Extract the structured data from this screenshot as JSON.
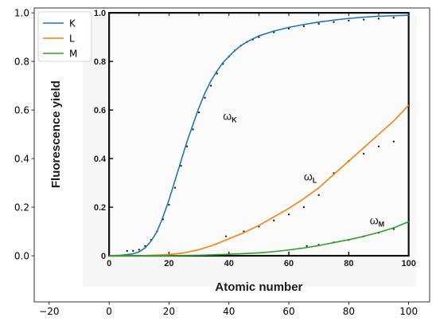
{
  "chart_data": {
    "type": "line",
    "title": "",
    "xlim": [
      -25,
      107
    ],
    "ylim": [
      -0.19,
      1.02
    ],
    "xticks": [
      -20,
      0,
      20,
      40,
      60,
      80,
      100
    ],
    "yticks": [
      0.0,
      0.2,
      0.4,
      0.6,
      0.8,
      1.0
    ],
    "xtick_labels": [
      "−20",
      "0",
      "20",
      "40",
      "60",
      "80",
      "100"
    ],
    "ytick_labels": [
      "0.0",
      "0.2",
      "0.4",
      "0.6",
      "0.8",
      "1.0"
    ],
    "grid": false,
    "legend": "top-left",
    "series": [
      {
        "name": "K",
        "color": "#1f77b4",
        "x": [
          0,
          4,
          8,
          10,
          12,
          14,
          16,
          18,
          20,
          22,
          24,
          26,
          28,
          30,
          32,
          34,
          36,
          38,
          40,
          42,
          44,
          46,
          48,
          50,
          55,
          60,
          65,
          70,
          75,
          80,
          85,
          90,
          95,
          100
        ],
        "y": [
          0.0,
          0.002,
          0.008,
          0.016,
          0.032,
          0.06,
          0.1,
          0.16,
          0.23,
          0.31,
          0.39,
          0.47,
          0.54,
          0.61,
          0.67,
          0.72,
          0.76,
          0.795,
          0.82,
          0.845,
          0.865,
          0.88,
          0.893,
          0.905,
          0.925,
          0.94,
          0.952,
          0.962,
          0.97,
          0.977,
          0.982,
          0.986,
          0.988,
          0.99
        ]
      },
      {
        "name": "L",
        "color": "#ff7f0e",
        "x": [
          0,
          10,
          20,
          25,
          30,
          35,
          40,
          45,
          50,
          55,
          60,
          65,
          70,
          75,
          80,
          85,
          90,
          95,
          100
        ],
        "y": [
          0.0,
          0.0,
          0.005,
          0.012,
          0.025,
          0.045,
          0.07,
          0.095,
          0.125,
          0.16,
          0.195,
          0.235,
          0.28,
          0.335,
          0.39,
          0.445,
          0.5,
          0.555,
          0.62
        ]
      },
      {
        "name": "M",
        "color": "#2ca02c",
        "x": [
          0,
          10,
          20,
          30,
          40,
          50,
          55,
          60,
          65,
          70,
          75,
          80,
          85,
          90,
          95,
          100
        ],
        "y": [
          0.0,
          0.0,
          0.0,
          0.002,
          0.006,
          0.012,
          0.017,
          0.024,
          0.032,
          0.042,
          0.054,
          0.066,
          0.08,
          0.096,
          0.115,
          0.14
        ]
      }
    ],
    "background_scan": {
      "ylabel": "Fluorescence yield",
      "xlabel": "Atomic number",
      "xtick_labels": [
        "0",
        "20",
        "40",
        "60",
        "80",
        "100"
      ],
      "ytick_labels": [
        "0",
        "0.2",
        "0.4",
        "0.6",
        "0.8",
        "1.0"
      ],
      "curve_labels": [
        "ωK",
        "ωL",
        "ωM"
      ],
      "dotted_series": [
        {
          "label": "ωK",
          "x": [
            6,
            8,
            10,
            12,
            14,
            16,
            18,
            20,
            22,
            24,
            26,
            28,
            30,
            32,
            34,
            36,
            38,
            40,
            42,
            44,
            46,
            48,
            50,
            55,
            60,
            65,
            70,
            75,
            80,
            85,
            90,
            95
          ],
          "y": [
            0.02,
            0.02,
            0.025,
            0.04,
            0.065,
            0.1,
            0.15,
            0.21,
            0.28,
            0.37,
            0.45,
            0.52,
            0.59,
            0.65,
            0.7,
            0.75,
            0.79,
            0.82,
            0.845,
            0.865,
            0.88,
            0.89,
            0.9,
            0.92,
            0.935,
            0.945,
            0.955,
            0.962,
            0.968,
            0.972,
            0.976,
            0.98
          ]
        },
        {
          "label": "ωL",
          "x": [
            39,
            45,
            50,
            55,
            60,
            65,
            70,
            75,
            80,
            85,
            90,
            95
          ],
          "y": [
            0.08,
            0.1,
            0.12,
            0.145,
            0.17,
            0.2,
            0.25,
            0.34,
            0.39,
            0.42,
            0.45,
            0.47
          ]
        },
        {
          "label": "ωM",
          "x": [
            66,
            70,
            75,
            80,
            85,
            90,
            95
          ],
          "y": [
            0.04,
            0.045,
            0.055,
            0.065,
            0.08,
            0.095,
            0.11
          ]
        }
      ]
    }
  }
}
